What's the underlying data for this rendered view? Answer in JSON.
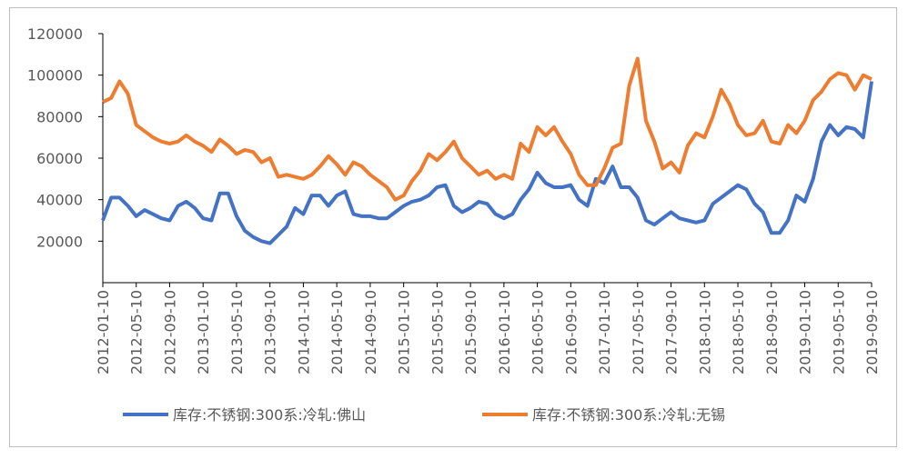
{
  "chart_data": {
    "type": "line",
    "x": [
      "2012-01-10",
      "2012-02-10",
      "2012-03-10",
      "2012-04-10",
      "2012-05-10",
      "2012-06-10",
      "2012-07-10",
      "2012-08-10",
      "2012-09-10",
      "2012-10-10",
      "2012-11-10",
      "2012-12-10",
      "2013-01-10",
      "2013-02-10",
      "2013-03-10",
      "2013-04-10",
      "2013-05-10",
      "2013-06-10",
      "2013-07-10",
      "2013-08-10",
      "2013-09-10",
      "2013-10-10",
      "2013-11-10",
      "2013-12-10",
      "2014-01-10",
      "2014-02-10",
      "2014-03-10",
      "2014-04-10",
      "2014-05-10",
      "2014-06-10",
      "2014-07-10",
      "2014-08-10",
      "2014-09-10",
      "2014-10-10",
      "2014-11-10",
      "2014-12-10",
      "2015-01-10",
      "2015-02-10",
      "2015-03-10",
      "2015-04-10",
      "2015-05-10",
      "2015-06-10",
      "2015-07-10",
      "2015-08-10",
      "2015-09-10",
      "2015-10-10",
      "2015-11-10",
      "2015-12-10",
      "2016-01-10",
      "2016-02-10",
      "2016-03-10",
      "2016-04-10",
      "2016-05-10",
      "2016-06-10",
      "2016-07-10",
      "2016-08-10",
      "2016-09-10",
      "2016-10-10",
      "2016-11-10",
      "2016-12-10",
      "2017-01-10",
      "2017-02-10",
      "2017-03-10",
      "2017-04-10",
      "2017-05-10",
      "2017-06-10",
      "2017-07-10",
      "2017-08-10",
      "2017-09-10",
      "2017-10-10",
      "2017-11-10",
      "2017-12-10",
      "2018-01-10",
      "2018-02-10",
      "2018-03-10",
      "2018-04-10",
      "2018-05-10",
      "2018-06-10",
      "2018-07-10",
      "2018-08-10",
      "2018-09-10",
      "2018-10-10",
      "2018-11-10",
      "2018-12-10",
      "2019-01-10",
      "2019-02-10",
      "2019-03-10",
      "2019-04-10",
      "2019-05-10",
      "2019-06-10",
      "2019-07-10",
      "2019-08-10",
      "2019-09-10"
    ],
    "series": [
      {
        "name": "库存:不锈钢:300系:冷轧:佛山",
        "color": "#4472c4",
        "values": [
          30000,
          41000,
          41000,
          37000,
          32000,
          35000,
          33000,
          31000,
          30000,
          37000,
          39000,
          36000,
          31000,
          30000,
          43000,
          43000,
          32000,
          25000,
          22000,
          20000,
          19000,
          23000,
          27000,
          36000,
          33000,
          42000,
          42000,
          37000,
          42000,
          44000,
          33000,
          32000,
          32000,
          31000,
          31000,
          34000,
          37000,
          39000,
          40000,
          42000,
          46000,
          47000,
          37000,
          34000,
          36000,
          39000,
          38000,
          33000,
          31000,
          33000,
          40000,
          45000,
          53000,
          48000,
          46000,
          46000,
          47000,
          40000,
          37000,
          50000,
          48000,
          56000,
          46000,
          46000,
          41000,
          30000,
          28000,
          31000,
          34000,
          31000,
          30000,
          29000,
          30000,
          38000,
          41000,
          44000,
          47000,
          45000,
          38000,
          34000,
          24000,
          24000,
          30000,
          42000,
          39000,
          50000,
          68000,
          76000,
          71000,
          75000,
          74000,
          70000,
          97000
        ]
      },
      {
        "name": "库存:不锈钢:300系:冷轧:无锡",
        "color": "#ed7d31",
        "values": [
          87000,
          89000,
          97000,
          91000,
          76000,
          73000,
          70000,
          68000,
          67000,
          68000,
          71000,
          68000,
          66000,
          63000,
          69000,
          66000,
          62000,
          64000,
          63000,
          58000,
          60000,
          51000,
          52000,
          51000,
          50000,
          52000,
          56000,
          61000,
          57000,
          52000,
          58000,
          56000,
          52000,
          49000,
          46000,
          40000,
          42000,
          49000,
          54000,
          62000,
          59000,
          63000,
          68000,
          60000,
          56000,
          52000,
          54000,
          50000,
          52000,
          50000,
          67000,
          63000,
          75000,
          71000,
          75000,
          68000,
          62000,
          52000,
          47000,
          47000,
          55000,
          65000,
          67000,
          95000,
          108000,
          78000,
          68000,
          55000,
          58000,
          53000,
          66000,
          72000,
          70000,
          80000,
          93000,
          86000,
          76000,
          71000,
          72000,
          78000,
          68000,
          67000,
          76000,
          72000,
          78000,
          88000,
          92000,
          98000,
          101000,
          100000,
          93000,
          100000,
          98000
        ]
      }
    ],
    "xticks": [
      "2012-01-10",
      "2012-05-10",
      "2012-09-10",
      "2013-01-10",
      "2013-05-10",
      "2013-09-10",
      "2014-01-10",
      "2014-05-10",
      "2014-09-10",
      "2015-01-10",
      "2015-05-10",
      "2015-09-10",
      "2016-01-10",
      "2016-05-10",
      "2016-09-10",
      "2017-01-10",
      "2017-05-10",
      "2017-09-10",
      "2018-01-10",
      "2018-05-10",
      "2018-09-10",
      "2019-01-10",
      "2019-05-10",
      "2019-09-10"
    ],
    "ylim": [
      0,
      120000
    ],
    "yticks": [
      20000,
      40000,
      60000,
      80000,
      100000,
      120000
    ],
    "grid": false,
    "legend": "bottom"
  }
}
